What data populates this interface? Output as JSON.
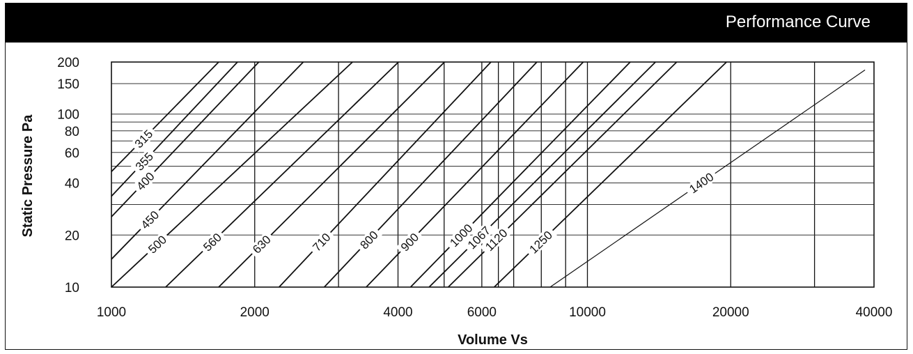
{
  "header": {
    "title": "Performance Curve"
  },
  "chart_data": {
    "type": "line",
    "title": "Performance Curve",
    "xlabel": "Volume Vs",
    "ylabel": "Static Pressure Pa",
    "xscale": "log",
    "yscale": "log",
    "xlim": [
      1000,
      40000
    ],
    "ylim": [
      10,
      200
    ],
    "x_tick_labels": [
      "1000",
      "2000",
      "4000",
      "6000",
      "10000",
      "20000",
      "40000"
    ],
    "y_tick_labels": [
      "10",
      "20",
      "40",
      "60",
      "80",
      "100",
      "150",
      "200"
    ],
    "x_gridlines": [
      2000,
      3000,
      4000,
      5000,
      6000,
      6500,
      7000,
      8000,
      9000,
      10000,
      20000,
      30000
    ],
    "y_gridlines": [
      20,
      30,
      40,
      50,
      60,
      70,
      80,
      90,
      100,
      150
    ],
    "series": [
      {
        "name": "315",
        "points": [
          [
            1000,
            46.5
          ],
          [
            1680,
            200
          ]
        ]
      },
      {
        "name": "355",
        "points": [
          [
            1000,
            33.5
          ],
          [
            1840,
            200
          ]
        ]
      },
      {
        "name": "400",
        "points": [
          [
            1000,
            25.5
          ],
          [
            2040,
            200
          ]
        ]
      },
      {
        "name": "450",
        "points": [
          [
            1000,
            14.5
          ],
          [
            2530,
            200
          ]
        ]
      },
      {
        "name": "500",
        "points": [
          [
            1000,
            10
          ],
          [
            3210,
            200
          ]
        ]
      },
      {
        "name": "560",
        "points": [
          [
            1300,
            10
          ],
          [
            4010,
            200
          ]
        ]
      },
      {
        "name": "630",
        "points": [
          [
            1680,
            10
          ],
          [
            5010,
            200
          ]
        ]
      },
      {
        "name": "710",
        "points": [
          [
            2250,
            10
          ],
          [
            6270,
            200
          ]
        ]
      },
      {
        "name": "800",
        "points": [
          [
            2800,
            10
          ],
          [
            7830,
            200
          ]
        ]
      },
      {
        "name": "900",
        "points": [
          [
            3430,
            10
          ],
          [
            9800,
            200
          ]
        ]
      },
      {
        "name": "1000",
        "points": [
          [
            4250,
            10
          ],
          [
            12300,
            200
          ]
        ]
      },
      {
        "name": "1067",
        "points": [
          [
            4650,
            10
          ],
          [
            13900,
            200
          ]
        ]
      },
      {
        "name": "1120",
        "points": [
          [
            5100,
            10
          ],
          [
            15400,
            200
          ]
        ]
      },
      {
        "name": "1250",
        "points": [
          [
            6370,
            10
          ],
          [
            19600,
            200
          ]
        ]
      },
      {
        "name": "1400",
        "points": [
          [
            8350,
            10
          ],
          [
            38300,
            180
          ]
        ]
      }
    ],
    "grid": true
  }
}
